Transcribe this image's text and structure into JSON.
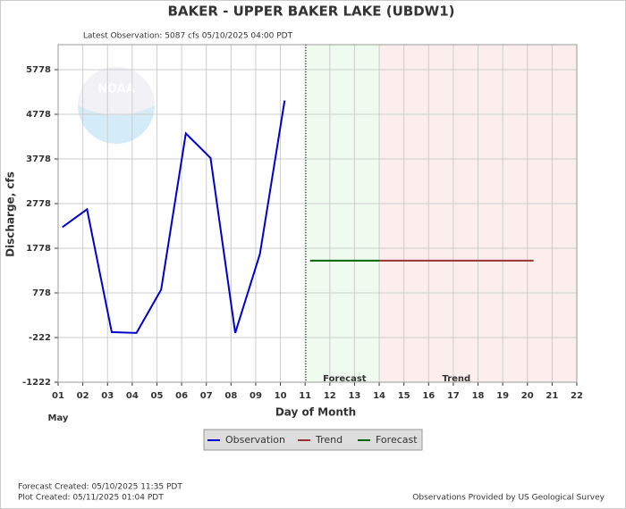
{
  "chart_data": {
    "type": "line",
    "title": "BAKER - UPPER BAKER LAKE  (UBDW1)",
    "subtitle": "Latest Observation: 5087 cfs 05/10/2025 04:00 PDT",
    "x_label": "Day of Month",
    "y_label": "Discharge, cfs",
    "month_label": "May",
    "logo_text": "NOAA",
    "xlim": [
      1,
      22
    ],
    "ylim": [
      -1222,
      6338
    ],
    "xticks": [
      {
        "value": 1,
        "label": "01"
      },
      {
        "value": 2,
        "label": "02"
      },
      {
        "value": 3,
        "label": "03"
      },
      {
        "value": 4,
        "label": "04"
      },
      {
        "value": 5,
        "label": "05"
      },
      {
        "value": 6,
        "label": "06"
      },
      {
        "value": 7,
        "label": "07"
      },
      {
        "value": 8,
        "label": "08"
      },
      {
        "value": 9,
        "label": "09"
      },
      10,
      11,
      12,
      13,
      14,
      15,
      16,
      17,
      18,
      19,
      20,
      21,
      22
    ],
    "yticks": [
      -1222,
      -222,
      778,
      1778,
      2778,
      3778,
      4778,
      5778
    ],
    "grid": true,
    "series": [
      {
        "name": "Observation",
        "color": "#0000cc",
        "x": [
          1.17,
          2.17,
          3.17,
          4.17,
          5.17,
          6.17,
          7.17,
          8.17,
          9.17,
          10.17
        ],
        "values": [
          2250,
          2650,
          -100,
          -120,
          850,
          4350,
          3800,
          -120,
          1650,
          5087
        ]
      },
      {
        "name": "Trend",
        "color": "#993333",
        "x": [
          14,
          20.25
        ],
        "values": [
          1500,
          1500
        ]
      },
      {
        "name": "Forecast",
        "color": "#006600",
        "x": [
          11.2,
          14
        ],
        "values": [
          1500,
          1500
        ]
      }
    ],
    "regions": [
      {
        "label": "Forecast",
        "start": 11.03,
        "end": 14,
        "color": "#effbef"
      },
      {
        "label": "Trend",
        "start": 14,
        "end": 22,
        "color": "#fdeeee"
      }
    ],
    "footer": {
      "forecast_created": "Forecast Created: 05/10/2025 11:35 PDT",
      "plot_created": "Plot Created: 05/11/2025 01:04 PDT",
      "source": "Observations Provided by US Geological Survey"
    }
  }
}
